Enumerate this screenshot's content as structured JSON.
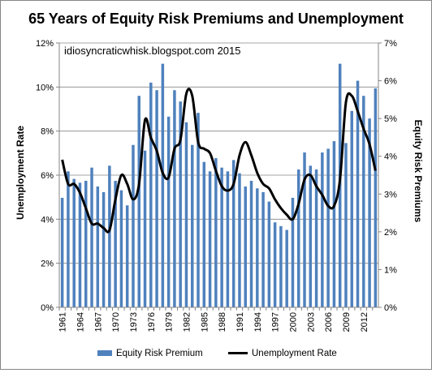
{
  "chart_data": {
    "type": "bar",
    "title": "65 Years of Equity Risk Premiums and Unemployment",
    "annotation": "idiosyncraticwhisk.blogspot.com  2015",
    "ylabel_left": "Unemployment Rate",
    "ylabel_right": "Equity Risk Premiums",
    "ylim_left": [
      0,
      12
    ],
    "ylim_right": [
      0,
      7
    ],
    "yticks_left": [
      "0%",
      "2%",
      "4%",
      "6%",
      "8%",
      "10%",
      "12%"
    ],
    "yticks_right": [
      "0%",
      "1%",
      "2%",
      "3%",
      "4%",
      "5%",
      "6%",
      "7%"
    ],
    "x_tick_labels": [
      "1961",
      "1964",
      "1967",
      "1970",
      "1973",
      "1976",
      "1979",
      "1982",
      "1985",
      "1988",
      "1991",
      "1994",
      "1997",
      "2000",
      "2003",
      "2006",
      "2009",
      "2012"
    ],
    "grid": "horizontal",
    "legend_position": "bottom",
    "years": [
      1961,
      1962,
      1963,
      1964,
      1965,
      1966,
      1967,
      1968,
      1969,
      1970,
      1971,
      1972,
      1973,
      1974,
      1975,
      1976,
      1977,
      1978,
      1979,
      1980,
      1981,
      1982,
      1983,
      1984,
      1985,
      1986,
      1987,
      1988,
      1989,
      1990,
      1991,
      1992,
      1993,
      1994,
      1995,
      1996,
      1997,
      1998,
      1999,
      2000,
      2001,
      2002,
      2003,
      2004,
      2005,
      2006,
      2007,
      2008,
      2009,
      2010,
      2011,
      2012,
      2013,
      2014
    ],
    "series": [
      {
        "name": "Equity Risk Premium",
        "axis": "right",
        "style": "bar",
        "color": "#4F81BD",
        "values": [
          2.9,
          3.6,
          3.4,
          3.3,
          3.35,
          3.7,
          3.2,
          3.05,
          3.75,
          3.35,
          3.1,
          2.7,
          4.3,
          5.6,
          4.15,
          5.95,
          5.75,
          6.45,
          5.05,
          5.75,
          5.45,
          4.9,
          4.3,
          5.15,
          3.85,
          3.6,
          3.95,
          3.7,
          3.6,
          3.9,
          3.55,
          3.2,
          3.35,
          3.15,
          3.05,
          2.8,
          2.25,
          2.15,
          2.05,
          2.9,
          3.65,
          4.1,
          3.75,
          3.65,
          4.1,
          4.2,
          4.4,
          6.45,
          4.35,
          5.2,
          6.0,
          5.6,
          5.0,
          5.8
        ]
      },
      {
        "name": "Unemployment Rate",
        "axis": "left",
        "style": "line",
        "color": "#000000",
        "values": [
          6.7,
          5.6,
          5.6,
          5.2,
          4.5,
          3.8,
          3.8,
          3.6,
          3.5,
          4.9,
          6.0,
          5.6,
          4.9,
          5.6,
          8.5,
          7.7,
          7.1,
          6.1,
          5.9,
          7.2,
          7.6,
          9.7,
          9.6,
          7.5,
          7.2,
          7.0,
          6.2,
          5.5,
          5.3,
          5.6,
          6.9,
          7.5,
          6.9,
          6.1,
          5.6,
          5.4,
          4.9,
          4.5,
          4.2,
          4.0,
          4.7,
          5.8,
          6.0,
          5.5,
          5.1,
          4.6,
          4.6,
          5.8,
          9.3,
          9.6,
          8.9,
          8.1,
          7.4,
          6.2
        ]
      }
    ]
  }
}
